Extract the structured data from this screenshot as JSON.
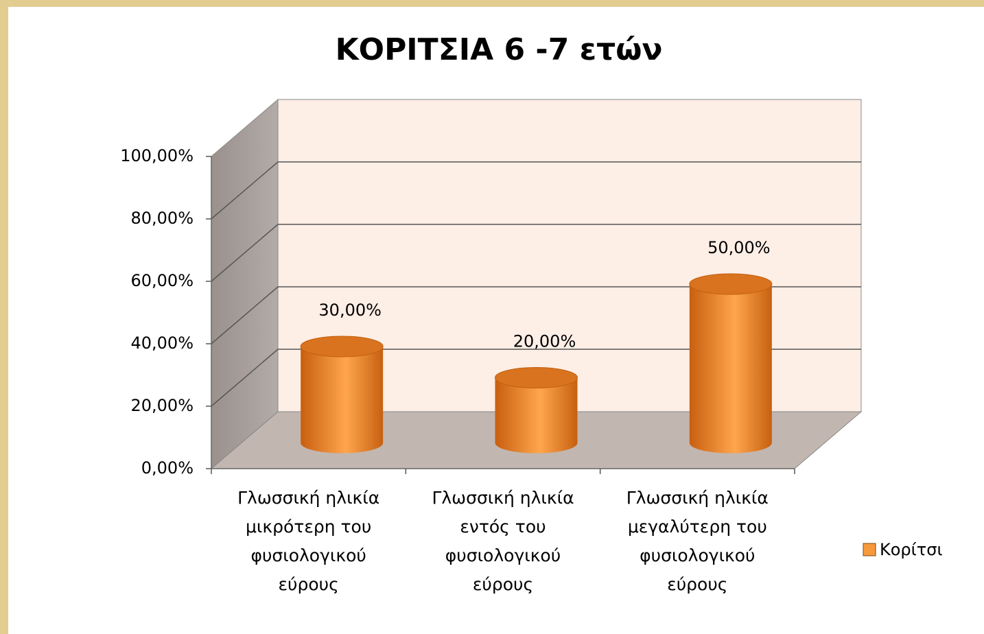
{
  "chart_data": {
    "type": "bar3d",
    "title": "ΚΟΡΙΤΣΙΑ 6 -7 ετών",
    "categories": [
      "Γλωσσική ηλικία μικρότερη του φυσιολογικού εύρους",
      "Γλωσσική ηλικία εντός του φυσιολογικού εύρους",
      "Γλωσσική ηλικία μεγαλύτερη του φυσιολογικού εύρους"
    ],
    "series": [
      {
        "name": "Κορίτσι",
        "color": "#f79a3c",
        "values": [
          30,
          20,
          50
        ],
        "value_labels": [
          "30,00%",
          "20,00%",
          "50,00%"
        ]
      }
    ],
    "ylim": [
      0,
      100
    ],
    "yticks": [
      {
        "value": 0,
        "label": "0,00%"
      },
      {
        "value": 20,
        "label": "20,00%"
      },
      {
        "value": 40,
        "label": "40,00%"
      },
      {
        "value": 60,
        "label": "60,00%"
      },
      {
        "value": 80,
        "label": "80,00%"
      },
      {
        "value": 100,
        "label": "100,00%"
      }
    ],
    "grid": true,
    "legend": "right"
  }
}
